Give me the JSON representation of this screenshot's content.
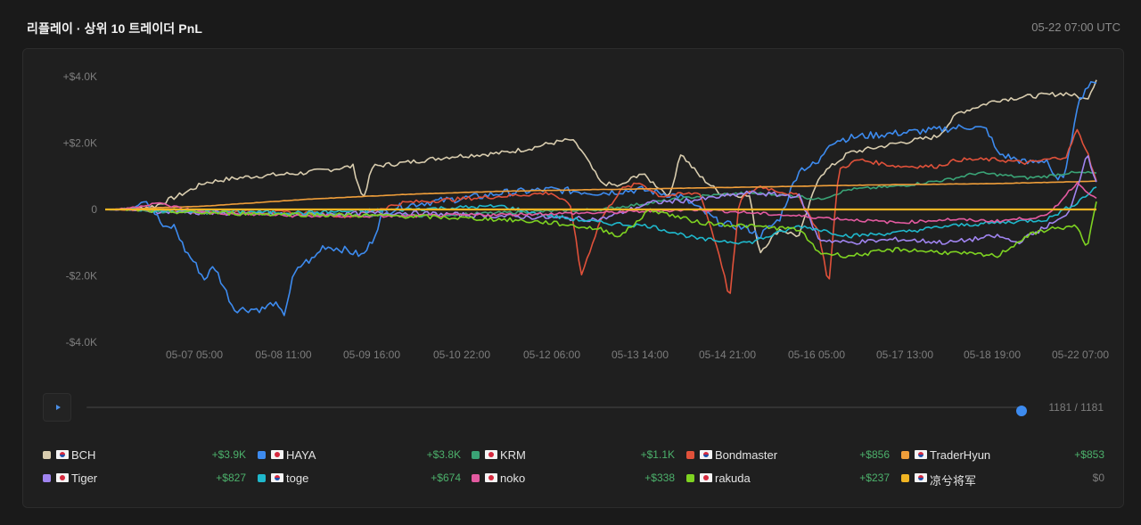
{
  "header": {
    "title": "리플레이 · 상위 10 트레이더 PnL",
    "timestamp": "05-22 07:00 UTC"
  },
  "playback": {
    "play_icon": "play-icon",
    "counter": "1181 / 1181",
    "position": 1.0
  },
  "chart_data": {
    "type": "line",
    "title": "",
    "xlabel": "",
    "ylabel": "",
    "y_tick_labels": [
      "+$4.0K",
      "+$2.0K",
      "0",
      "-$2.0K",
      "-$4.0K"
    ],
    "y_ticks": [
      4000,
      2000,
      0,
      -2000,
      -4000
    ],
    "ylim": [
      -4000,
      4000
    ],
    "x_tick_labels": [
      "05-07 05:00",
      "05-08 11:00",
      "05-09 16:00",
      "05-10 22:00",
      "05-12 06:00",
      "05-13 14:00",
      "05-14 21:00",
      "05-16 05:00",
      "05-17 13:00",
      "05-18 19:00",
      "05-22 07:00"
    ],
    "x_tick_positions": [
      0.08,
      0.17,
      0.26,
      0.35,
      0.44,
      0.54,
      0.63,
      0.72,
      0.81,
      0.9,
      1.0
    ],
    "x_axis": "normalized time 0-1 (05-06 to 05-22 07:00)",
    "grid": false,
    "legend": "bottom",
    "series": [
      {
        "name": "BCH",
        "color": "#d8ccae",
        "x": [
          0,
          0.05,
          0.08,
          0.1,
          0.12,
          0.15,
          0.2,
          0.25,
          0.26,
          0.27,
          0.3,
          0.35,
          0.4,
          0.43,
          0.45,
          0.47,
          0.48,
          0.5,
          0.52,
          0.54,
          0.57,
          0.58,
          0.6,
          0.62,
          0.65,
          0.66,
          0.68,
          0.7,
          0.72,
          0.75,
          0.8,
          0.84,
          0.86,
          0.88,
          0.9,
          0.93,
          0.95,
          0.97,
          0.99,
          1.0
        ],
        "values": [
          0,
          100,
          500,
          800,
          900,
          1000,
          1100,
          1300,
          300,
          1300,
          1400,
          1600,
          1700,
          1850,
          2000,
          2100,
          1800,
          800,
          700,
          1100,
          400,
          1700,
          1000,
          500,
          400,
          -1300,
          -600,
          -800,
          1000,
          1700,
          2000,
          2200,
          2900,
          3100,
          3300,
          3400,
          3450,
          3500,
          3300,
          3900
        ]
      },
      {
        "name": "HAYA",
        "color": "#3d8bef",
        "x": [
          0,
          0.02,
          0.04,
          0.06,
          0.07,
          0.08,
          0.09,
          0.1,
          0.11,
          0.13,
          0.15,
          0.16,
          0.17,
          0.18,
          0.19,
          0.2,
          0.21,
          0.22,
          0.24,
          0.26,
          0.27,
          0.28,
          0.3,
          0.32,
          0.35,
          0.38,
          0.4,
          0.45,
          0.5,
          0.54,
          0.58,
          0.62,
          0.65,
          0.66,
          0.68,
          0.7,
          0.72,
          0.73,
          0.74,
          0.76,
          0.8,
          0.84,
          0.87,
          0.89,
          0.9,
          0.91,
          0.93,
          0.95,
          0.96,
          0.97,
          0.98,
          0.99,
          1.0
        ],
        "values": [
          0,
          0,
          400,
          -600,
          -500,
          -1200,
          -1600,
          -2100,
          -1700,
          -3000,
          -3000,
          -3000,
          -2800,
          -3200,
          -2000,
          -1600,
          -1500,
          -1100,
          -1200,
          -1400,
          -900,
          -100,
          100,
          200,
          300,
          400,
          500,
          600,
          500,
          600,
          400,
          -400,
          -600,
          -800,
          -300,
          1200,
          1400,
          2000,
          2100,
          2200,
          2300,
          2400,
          2500,
          2400,
          1700,
          1600,
          1400,
          1500,
          800,
          1200,
          3100,
          3700,
          3800
        ]
      },
      {
        "name": "KRM",
        "color": "#3aa376",
        "x": [
          0,
          0.1,
          0.2,
          0.3,
          0.4,
          0.5,
          0.55,
          0.6,
          0.65,
          0.7,
          0.72,
          0.75,
          0.8,
          0.85,
          0.88,
          0.9,
          0.93,
          0.95,
          0.97,
          1.0
        ],
        "values": [
          0,
          -100,
          -150,
          -200,
          -100,
          0,
          200,
          400,
          500,
          400,
          300,
          600,
          700,
          900,
          1100,
          1050,
          950,
          1000,
          1100,
          1100
        ]
      },
      {
        "name": "Bondmaster",
        "color": "#e0513a",
        "x": [
          0,
          0.1,
          0.2,
          0.25,
          0.3,
          0.35,
          0.4,
          0.45,
          0.47,
          0.48,
          0.5,
          0.52,
          0.54,
          0.56,
          0.6,
          0.62,
          0.63,
          0.64,
          0.66,
          0.7,
          0.72,
          0.73,
          0.74,
          0.76,
          0.8,
          0.84,
          0.86,
          0.9,
          0.93,
          0.95,
          0.97,
          0.98,
          0.99,
          1.0
        ],
        "values": [
          0,
          -50,
          -100,
          -200,
          200,
          300,
          400,
          500,
          100,
          -2000,
          -300,
          600,
          800,
          400,
          500,
          -1400,
          -2700,
          300,
          700,
          400,
          -700,
          -2300,
          1200,
          1500,
          1300,
          1300,
          1500,
          1500,
          1400,
          1500,
          1600,
          2400,
          1800,
          856
        ]
      },
      {
        "name": "TraderHyun",
        "color": "#ef9e3a",
        "x": [
          0,
          0.1,
          0.2,
          0.3,
          0.4,
          0.5,
          0.6,
          0.7,
          0.8,
          0.9,
          1.0
        ],
        "values": [
          0,
          100,
          300,
          450,
          550,
          600,
          650,
          700,
          750,
          780,
          853
        ]
      },
      {
        "name": "Tiger",
        "color": "#a084f0",
        "x": [
          0,
          0.1,
          0.2,
          0.3,
          0.4,
          0.5,
          0.55,
          0.6,
          0.65,
          0.7,
          0.72,
          0.75,
          0.8,
          0.85,
          0.9,
          0.92,
          0.95,
          0.97,
          0.98,
          0.99,
          1.0
        ],
        "values": [
          0,
          -100,
          -150,
          -100,
          -200,
          -300,
          200,
          300,
          500,
          400,
          -900,
          -1000,
          -900,
          -1000,
          -800,
          -1000,
          -500,
          -200,
          600,
          1700,
          827
        ]
      },
      {
        "name": "toge",
        "color": "#1fb8cc",
        "x": [
          0,
          0.1,
          0.2,
          0.3,
          0.4,
          0.45,
          0.5,
          0.55,
          0.6,
          0.65,
          0.7,
          0.72,
          0.75,
          0.8,
          0.85,
          0.9,
          0.95,
          0.98,
          1.0
        ],
        "values": [
          0,
          -50,
          -100,
          0,
          100,
          -200,
          -400,
          -500,
          -900,
          -1000,
          -500,
          -600,
          -800,
          -700,
          -500,
          -400,
          -300,
          200,
          674
        ]
      },
      {
        "name": "noko",
        "color": "#e35aa0",
        "x": [
          0,
          0.05,
          0.1,
          0.2,
          0.3,
          0.4,
          0.5,
          0.6,
          0.65,
          0.7,
          0.75,
          0.8,
          0.85,
          0.9,
          0.95,
          0.98,
          1.0
        ],
        "values": [
          0,
          200,
          -100,
          -200,
          -200,
          -150,
          -100,
          0,
          -100,
          -200,
          -300,
          -400,
          -300,
          -350,
          -200,
          800,
          338
        ]
      },
      {
        "name": "rakuda",
        "color": "#7ed321",
        "x": [
          0,
          0.1,
          0.2,
          0.3,
          0.4,
          0.45,
          0.5,
          0.52,
          0.55,
          0.6,
          0.65,
          0.7,
          0.72,
          0.75,
          0.8,
          0.85,
          0.9,
          0.93,
          0.95,
          0.98,
          0.99,
          1.0
        ],
        "values": [
          0,
          -100,
          -150,
          -200,
          -300,
          -400,
          -600,
          -800,
          0,
          -400,
          -500,
          -600,
          -1300,
          -1400,
          -1200,
          -1300,
          -1400,
          -800,
          -600,
          -500,
          -1200,
          237
        ]
      },
      {
        "name": "凉兮将军",
        "color": "#f0b423",
        "x": [
          0,
          1.0
        ],
        "values": [
          0,
          0
        ]
      }
    ]
  },
  "legend": [
    {
      "name": "BCH",
      "pnl": "+$3.9K",
      "color": "#d8ccae",
      "flag": "kr-flag-icon"
    },
    {
      "name": "HAYA",
      "pnl": "+$3.8K",
      "color": "#3d8bef",
      "flag": "jp-flag-icon"
    },
    {
      "name": "KRM",
      "pnl": "+$1.1K",
      "color": "#3aa376",
      "flag": "jp-flag-icon"
    },
    {
      "name": "Bondmaster",
      "pnl": "+$856",
      "color": "#e0513a",
      "flag": "kr-flag-icon"
    },
    {
      "name": "TraderHyun",
      "pnl": "+$853",
      "color": "#ef9e3a",
      "flag": "kr-flag-icon"
    },
    {
      "name": "Tiger",
      "pnl": "+$827",
      "color": "#a084f0",
      "flag": "jp-flag-icon"
    },
    {
      "name": "toge",
      "pnl": "+$674",
      "color": "#1fb8cc",
      "flag": "kr-flag-icon"
    },
    {
      "name": "noko",
      "pnl": "+$338",
      "color": "#e35aa0",
      "flag": "jp-flag-icon"
    },
    {
      "name": "rakuda",
      "pnl": "+$237",
      "color": "#7ed321",
      "flag": "jp-flag-icon"
    },
    {
      "name": "凉兮将军",
      "pnl": "$0",
      "color": "#f0b423",
      "flag": "kr-flag-icon"
    }
  ]
}
